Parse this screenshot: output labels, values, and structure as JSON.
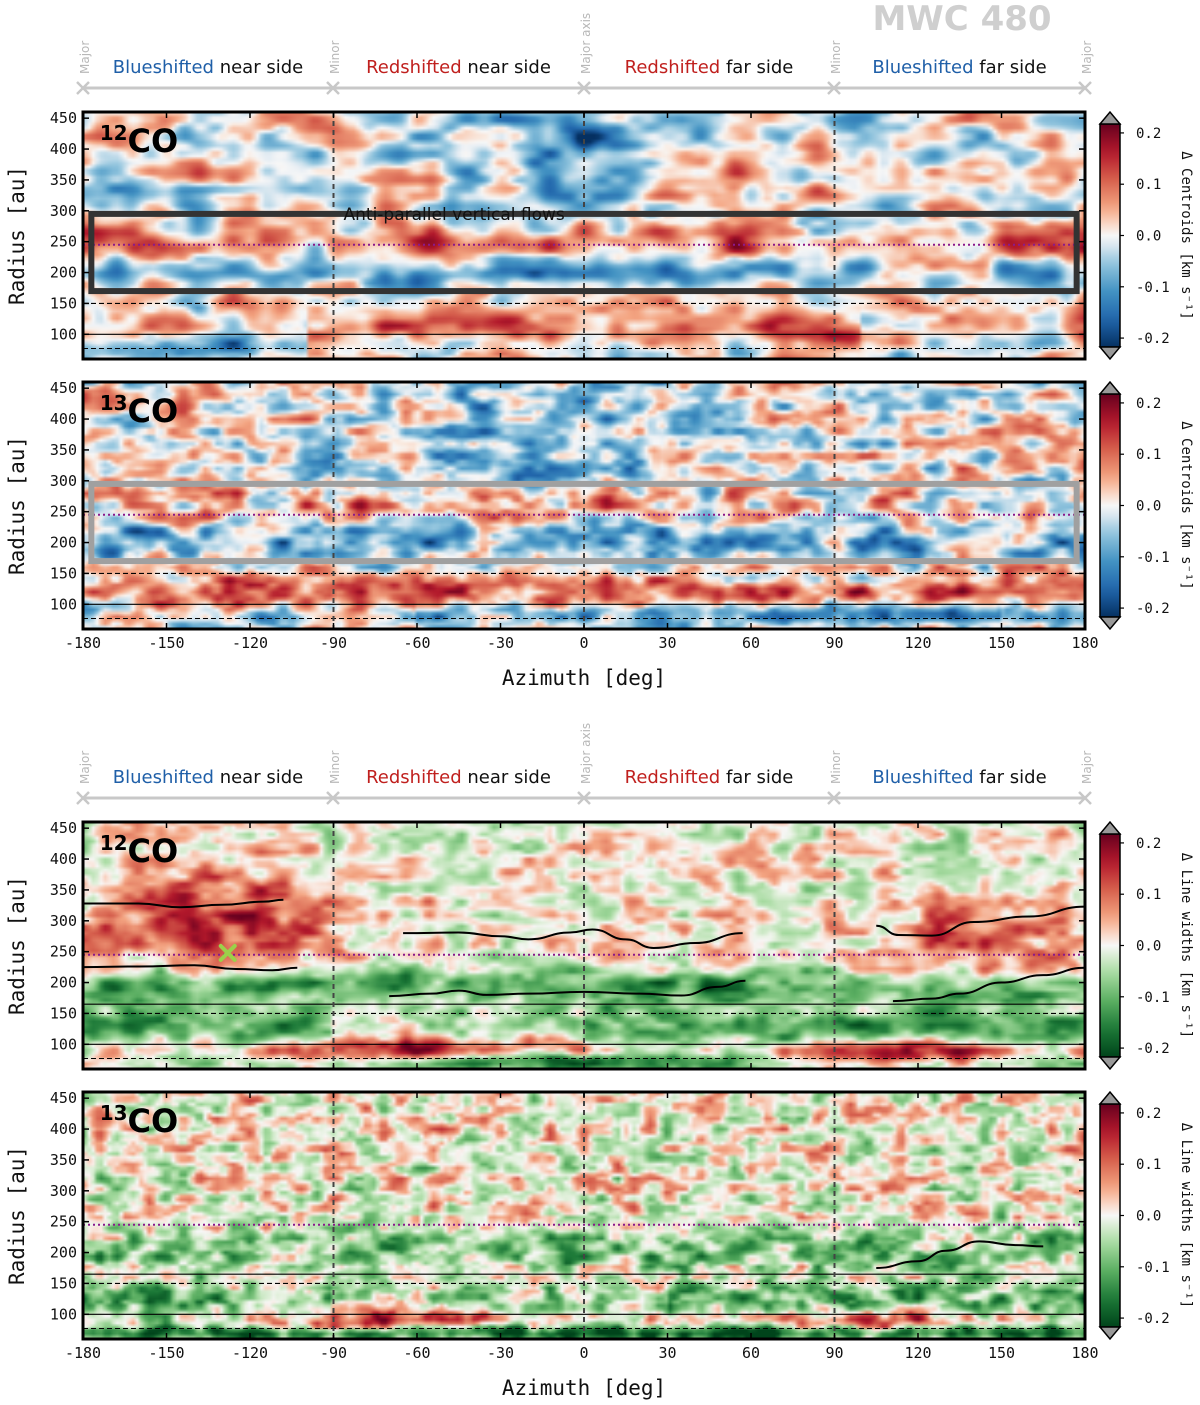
{
  "figure": {
    "source_title": "MWC 480",
    "sectors": [
      {
        "color_word": "Blueshifted",
        "rest": " near side",
        "color": "#1f5fa8"
      },
      {
        "color_word": "Redshifted",
        "rest": " near side",
        "color": "#c0201e"
      },
      {
        "color_word": "Redshifted",
        "rest": " far side",
        "color": "#c0201e"
      },
      {
        "color_word": "Blueshifted",
        "rest": " far side",
        "color": "#1f5fa8"
      }
    ],
    "axis_markers": [
      "Major",
      "Minor",
      "Major axis",
      "Minor",
      "Major"
    ],
    "annotation": "Anti-parallel vertical flows",
    "colors": {
      "sector_bar": "#c8c8c8",
      "marker_text": "#b8b8b8",
      "title_text": "#cfcfcf",
      "reference_line": "#8b1a8b",
      "planet_marker": "#9bd14a"
    }
  },
  "chart_data": [
    {
      "type": "heatmap",
      "molecule_base": "CO",
      "molecule_sup": "12",
      "quantity": "centroids",
      "xlabel": "",
      "ylabel": "Radius [au]",
      "colorbar_label": "Δ Centroids [km s⁻¹]",
      "colormap": "RdBu_r",
      "clim": [
        -0.2,
        0.2
      ],
      "colorbar_ticks": [
        "0.2",
        "0.1",
        "0.0",
        "-0.1",
        "-0.2"
      ],
      "xlim": [
        -180,
        180
      ],
      "ylim": [
        60,
        460
      ],
      "x_ticks": [],
      "y_ticks": [
        "450",
        "400",
        "350",
        "300",
        "250",
        "200",
        "150",
        "100"
      ],
      "vlines_dashed": [
        -90,
        0,
        90
      ],
      "hline_dotted": 245,
      "hlines_dashed": [
        150,
        77
      ],
      "hlines_solid": [
        100
      ],
      "box": {
        "x": [
          -177,
          177
        ],
        "y": [
          170,
          295
        ],
        "color": "#333333"
      },
      "pattern": "centroid12"
    },
    {
      "type": "heatmap",
      "molecule_base": "CO",
      "molecule_sup": "13",
      "quantity": "centroids",
      "xlabel": "Azimuth [deg]",
      "ylabel": "Radius [au]",
      "colorbar_label": "Δ Centroids [km s⁻¹]",
      "colormap": "RdBu_r",
      "clim": [
        -0.2,
        0.2
      ],
      "colorbar_ticks": [
        "0.2",
        "0.1",
        "0.0",
        "-0.1",
        "-0.2"
      ],
      "xlim": [
        -180,
        180
      ],
      "ylim": [
        60,
        460
      ],
      "x_ticks": [
        "-180",
        "-150",
        "-120",
        "-90",
        "-60",
        "-30",
        "0",
        "30",
        "60",
        "90",
        "120",
        "150",
        "180"
      ],
      "y_ticks": [
        "450",
        "400",
        "350",
        "300",
        "250",
        "200",
        "150",
        "100"
      ],
      "vlines_dashed": [
        -90,
        0,
        90
      ],
      "hline_dotted": 245,
      "hlines_dashed": [
        150,
        77
      ],
      "hlines_solid": [
        100
      ],
      "box": {
        "x": [
          -177,
          177
        ],
        "y": [
          170,
          295
        ],
        "color": "#a0a0a0"
      },
      "pattern": "centroid13"
    },
    {
      "type": "heatmap",
      "molecule_base": "CO",
      "molecule_sup": "12",
      "quantity": "line widths",
      "xlabel": "",
      "ylabel": "Radius [au]",
      "colorbar_label": "Δ Line widths [km s⁻¹]",
      "colormap": "RdYlGn_r",
      "clim": [
        -0.2,
        0.2
      ],
      "colorbar_ticks": [
        "0.2",
        "0.1",
        "0.0",
        "-0.1",
        "-0.2"
      ],
      "xlim": [
        -180,
        180
      ],
      "ylim": [
        60,
        460
      ],
      "x_ticks": [],
      "y_ticks": [
        "450",
        "400",
        "350",
        "300",
        "250",
        "200",
        "150",
        "100"
      ],
      "vlines_dashed": [
        -90,
        0,
        90
      ],
      "hline_dotted": 245,
      "hlines_dashed": [
        150,
        77
      ],
      "hlines_solid": [
        165,
        100
      ],
      "marker": {
        "x": -128,
        "y": 248
      },
      "traces": [
        [
          [
            -180,
            328
          ],
          [
            -160,
            328
          ],
          [
            -145,
            322
          ],
          [
            -130,
            326
          ],
          [
            -115,
            331
          ],
          [
            -108,
            334
          ]
        ],
        [
          [
            -180,
            225
          ],
          [
            -160,
            226
          ],
          [
            -140,
            228
          ],
          [
            -125,
            222
          ],
          [
            -112,
            220
          ],
          [
            -103,
            224
          ]
        ],
        [
          [
            -65,
            280
          ],
          [
            -45,
            281
          ],
          [
            -30,
            275
          ],
          [
            -20,
            270
          ],
          [
            -5,
            281
          ],
          [
            3,
            286
          ],
          [
            15,
            270
          ],
          [
            25,
            256
          ],
          [
            40,
            264
          ],
          [
            57,
            280
          ]
        ],
        [
          [
            -70,
            178
          ],
          [
            -55,
            182
          ],
          [
            -45,
            187
          ],
          [
            -35,
            180
          ],
          [
            -20,
            182
          ],
          [
            0,
            185
          ],
          [
            20,
            182
          ],
          [
            35,
            179
          ],
          [
            48,
            193
          ],
          [
            58,
            203
          ]
        ],
        [
          [
            105,
            292
          ],
          [
            113,
            277
          ],
          [
            125,
            276
          ],
          [
            140,
            298
          ],
          [
            160,
            307
          ],
          [
            180,
            323
          ]
        ],
        [
          [
            111,
            170
          ],
          [
            125,
            174
          ],
          [
            135,
            182
          ],
          [
            150,
            200
          ],
          [
            165,
            212
          ],
          [
            180,
            224
          ]
        ]
      ],
      "pattern": "width12"
    },
    {
      "type": "heatmap",
      "molecule_base": "CO",
      "molecule_sup": "13",
      "quantity": "line widths",
      "xlabel": "Azimuth [deg]",
      "ylabel": "Radius [au]",
      "colorbar_label": "Δ Line widths [km s⁻¹]",
      "colormap": "RdYlGn_r",
      "clim": [
        -0.2,
        0.2
      ],
      "colorbar_ticks": [
        "0.2",
        "0.1",
        "0.0",
        "-0.1",
        "-0.2"
      ],
      "xlim": [
        -180,
        180
      ],
      "ylim": [
        60,
        460
      ],
      "x_ticks": [
        "-180",
        "-150",
        "-120",
        "-90",
        "-60",
        "-30",
        "0",
        "30",
        "60",
        "90",
        "120",
        "150",
        "180"
      ],
      "y_ticks": [
        "450",
        "400",
        "350",
        "300",
        "250",
        "200",
        "150",
        "100"
      ],
      "vlines_dashed": [
        -90,
        0,
        90
      ],
      "hline_dotted": 245,
      "hlines_dashed": [
        150,
        77
      ],
      "hlines_solid": [
        165,
        100
      ],
      "traces": [
        [
          [
            105,
            175
          ],
          [
            120,
            186
          ],
          [
            130,
            203
          ],
          [
            142,
            218
          ],
          [
            155,
            212
          ],
          [
            165,
            210
          ]
        ]
      ],
      "pattern": "width13"
    }
  ]
}
